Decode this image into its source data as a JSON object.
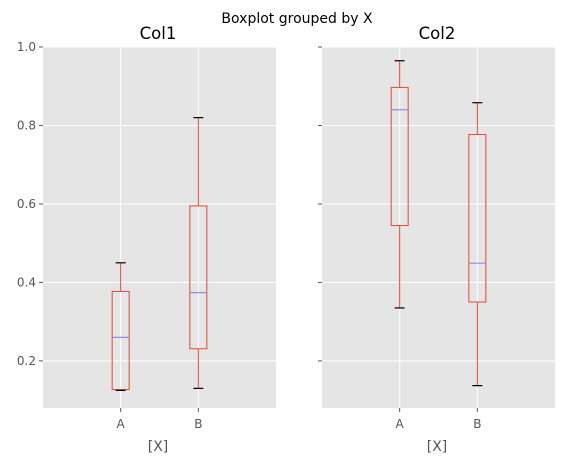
{
  "chart_data": {
    "type": "boxplot",
    "title": "Boxplot grouped by X",
    "style": {
      "background": "#ffffff",
      "panel_bg": "#e5e5e5",
      "grid_color": "#ffffff",
      "box_color": "#e24a33",
      "median_color": "#9988dd",
      "cap_color": "#000000",
      "tick_color": "#555555"
    },
    "shared_y": true,
    "ylim": [
      0.08,
      1.0
    ],
    "yticks": [
      0.2,
      0.4,
      0.6,
      0.8,
      1.0
    ],
    "ytick_labels": [
      "0.2",
      "0.4",
      "0.6",
      "0.8",
      "1.0"
    ],
    "grid": true,
    "panels": [
      {
        "title": "Col1",
        "xlabel": "[X]",
        "categories": [
          "A",
          "B"
        ],
        "boxes": [
          {
            "category": "A",
            "whisker_low": 0.125,
            "q1": 0.127,
            "median": 0.26,
            "q3": 0.377,
            "whisker_high": 0.45
          },
          {
            "category": "B",
            "whisker_low": 0.13,
            "q1": 0.231,
            "median": 0.374,
            "q3": 0.595,
            "whisker_high": 0.82
          }
        ]
      },
      {
        "title": "Col2",
        "xlabel": "[X]",
        "categories": [
          "A",
          "B"
        ],
        "boxes": [
          {
            "category": "A",
            "whisker_low": 0.335,
            "q1": 0.545,
            "median": 0.84,
            "q3": 0.897,
            "whisker_high": 0.965
          },
          {
            "category": "B",
            "whisker_low": 0.137,
            "q1": 0.35,
            "median": 0.449,
            "q3": 0.777,
            "whisker_high": 0.858
          }
        ]
      }
    ]
  }
}
